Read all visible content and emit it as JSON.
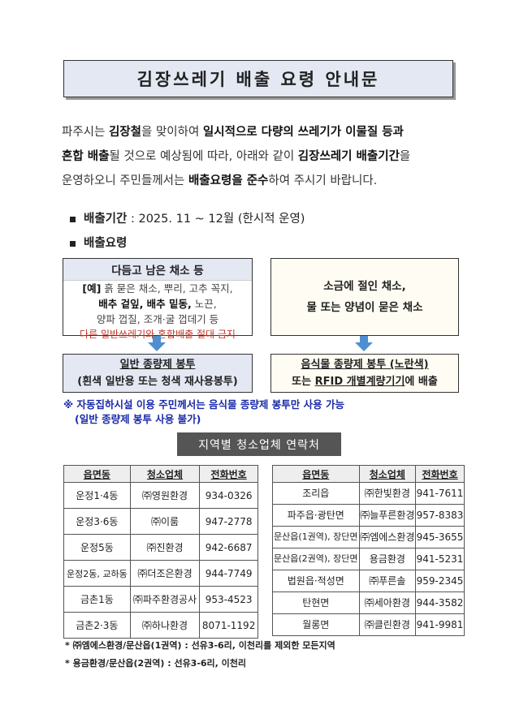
{
  "title": "김장쓰레기 배출 요령 안내문",
  "intro": {
    "line1": [
      "파주시는 ",
      "김장철",
      "을 맞이하여 ",
      "일시적으로 다량의 쓰레기가 이물질 등과"
    ],
    "line2": [
      "혼합 배출",
      "될 것으로 예상됨에 따라, 아래와 같이 ",
      "김장쓰레기 배출기간",
      "을"
    ],
    "line3": [
      "운영하오니 주민들께서는 ",
      "배출요령을 준수",
      "하여 주시기 바랍니다."
    ]
  },
  "period": {
    "label": "배출기간",
    "value": " : 2025. 11 ~ 12월 (한시적 운영)"
  },
  "method_label": "배출요령",
  "left_box": {
    "header": "다듬고 남은 채소 등",
    "ex_tag": "[예]",
    "ex1": " 흙 묻은 채소, 뿌리, 고추 꼭지,",
    "ex2_bold": "배추 겉잎, 배추 밑동,",
    "ex2": " 노끈,",
    "ex3": "양파 껍질, 조개·굴 껍데기 등",
    "warning": "다른 일반쓰레기와 혼합배출 절대 금지"
  },
  "right_box": {
    "line1": "소금에 절인 채소,",
    "line2": "물 또는 양념이 묻은 채소"
  },
  "left_result": {
    "line1": "일반 종량제 봉투",
    "line2": "(흰색 일반용 또는 청색 재사용봉투)"
  },
  "right_result": {
    "line1": "음식물 종량제 봉투 (노란색)",
    "line2_pre": "또는 ",
    "line2_u": "RFID 개별계량기기",
    "line2_post": "에 배출"
  },
  "notice": {
    "line1": "※ 자동집하시설 이용 주민께서는 음식물 종량제 봉투만 사용 가능",
    "line2": "(일반 종량제 봉투 사용 불가)"
  },
  "section_title": "지역별 청소업체 연락처",
  "headers": [
    "읍면동",
    "청소업체",
    "전화번호"
  ],
  "left_table": [
    [
      "운정1·4동",
      "㈜영원환경",
      "934-0326"
    ],
    [
      "운정3·6동",
      "㈜이룸",
      "947-2778"
    ],
    [
      "운정5동",
      "㈜진환경",
      "942-6687"
    ],
    [
      "운정2동, 교하동",
      "㈜더조은환경",
      "944-7749"
    ],
    [
      "금촌1동",
      "㈜파주환경공사",
      "953-4523"
    ],
    [
      "금촌2·3동",
      "㈜하나환경",
      "8071-1192"
    ]
  ],
  "right_table": [
    [
      "조리읍",
      "㈜한빛환경",
      "941-7611"
    ],
    [
      "파주읍·광탄면",
      "㈜늘푸른환경",
      "957-8383"
    ],
    [
      "문산읍(1권역), 장단면",
      "㈜엠에스환경",
      "945-3655"
    ],
    [
      "문산읍(2권역), 장단면",
      "용금환경",
      "941-5231"
    ],
    [
      "법원읍·적성면",
      "㈜푸른솔",
      "959-2345"
    ],
    [
      "탄현면",
      "㈜세아환경",
      "944-3582"
    ],
    [
      "월롱면",
      "㈜클린환경",
      "941-9981"
    ]
  ],
  "footnotes": [
    "* ㈜엠에스환경/문산읍(1권역) : 선유3-6리, 이천리를 제외한 모든지역",
    "* 용금환경/문산읍(2권역) : 선유3-6리, 이천리"
  ],
  "colors": {
    "title_bg": "#e3e8f2",
    "arrow": "#4f8fd0",
    "warning": "#c0392b",
    "notice": "#1a2aa8",
    "section_bg": "#555555"
  }
}
